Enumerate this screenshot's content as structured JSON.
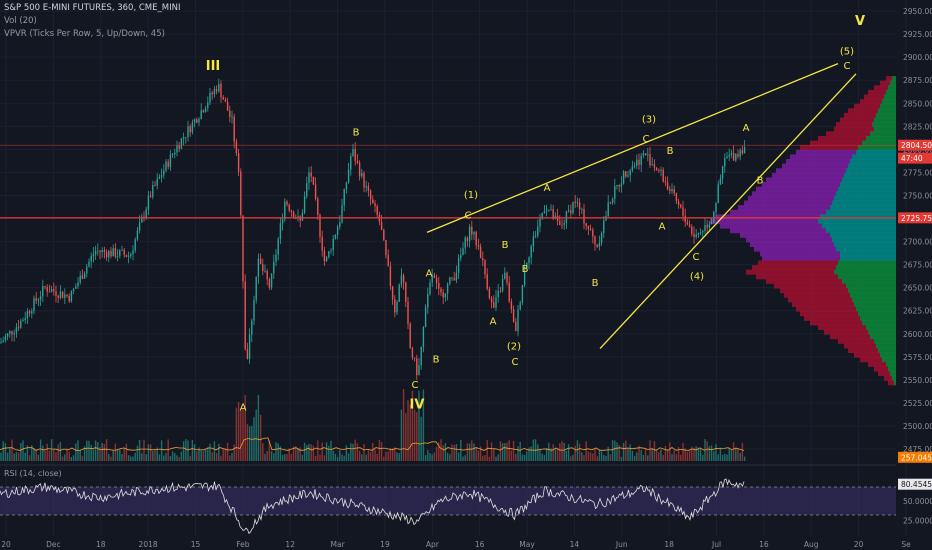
{
  "header": {
    "symbol_line": "S&P 500 E-MINI FUTURES, 360, CME_MINI",
    "vol_line": "Vol (20)",
    "vpvr_line": "VPVR (Ticks Per Row, 5, Up/Down, 45)",
    "rsi_line": "RSI (14, close)"
  },
  "colors": {
    "background": "#131722",
    "up": "#26a69a",
    "down": "#ef5350",
    "annotation": "#f5e642",
    "hline": "#e53935"
  },
  "chart_data": {
    "type": "candlestick",
    "title": "S&P 500 E-MINI FUTURES, 360, CME_MINI",
    "y_axis": {
      "ticks": [
        "2950.00",
        "2925.00",
        "2900.00",
        "2875.00",
        "2850.00",
        "2825.00",
        "2800.00",
        "2775.00",
        "2750.00",
        "2725.00",
        "2700.00",
        "2675.00",
        "2650.00",
        "2625.00",
        "2600.00",
        "2575.00",
        "2550.00",
        "2525.00",
        "2500.00",
        "2475.00"
      ],
      "range": [
        2462,
        2962
      ]
    },
    "x_axis": {
      "ticks": [
        "20",
        "Dec",
        "18",
        "2018",
        "15",
        "Feb",
        "12",
        "Mar",
        "19",
        "Apr",
        "16",
        "May",
        "14",
        "Jun",
        "18",
        "Jul",
        "16",
        "Aug",
        "20",
        "Se"
      ]
    },
    "price_anchors": [
      {
        "x": 0,
        "y": 2590
      },
      {
        "x": 20,
        "y": 2612
      },
      {
        "x": 45,
        "y": 2650
      },
      {
        "x": 70,
        "y": 2640
      },
      {
        "x": 95,
        "y": 2690
      },
      {
        "x": 130,
        "y": 2685
      },
      {
        "x": 150,
        "y": 2750
      },
      {
        "x": 175,
        "y": 2800
      },
      {
        "x": 200,
        "y": 2840
      },
      {
        "x": 218,
        "y": 2870
      },
      {
        "x": 232,
        "y": 2830
      },
      {
        "x": 240,
        "y": 2760
      },
      {
        "x": 246,
        "y": 2560
      },
      {
        "x": 258,
        "y": 2680
      },
      {
        "x": 270,
        "y": 2650
      },
      {
        "x": 285,
        "y": 2745
      },
      {
        "x": 300,
        "y": 2720
      },
      {
        "x": 310,
        "y": 2780
      },
      {
        "x": 325,
        "y": 2675
      },
      {
        "x": 340,
        "y": 2725
      },
      {
        "x": 352,
        "y": 2800
      },
      {
        "x": 365,
        "y": 2760
      },
      {
        "x": 380,
        "y": 2720
      },
      {
        "x": 395,
        "y": 2625
      },
      {
        "x": 402,
        "y": 2670
      },
      {
        "x": 410,
        "y": 2585
      },
      {
        "x": 418,
        "y": 2555
      },
      {
        "x": 425,
        "y": 2620
      },
      {
        "x": 432,
        "y": 2665
      },
      {
        "x": 440,
        "y": 2640
      },
      {
        "x": 455,
        "y": 2665
      },
      {
        "x": 470,
        "y": 2715
      },
      {
        "x": 480,
        "y": 2690
      },
      {
        "x": 493,
        "y": 2625
      },
      {
        "x": 505,
        "y": 2665
      },
      {
        "x": 515,
        "y": 2600
      },
      {
        "x": 525,
        "y": 2675
      },
      {
        "x": 545,
        "y": 2740
      },
      {
        "x": 560,
        "y": 2715
      },
      {
        "x": 575,
        "y": 2745
      },
      {
        "x": 597,
        "y": 2695
      },
      {
        "x": 610,
        "y": 2745
      },
      {
        "x": 625,
        "y": 2775
      },
      {
        "x": 645,
        "y": 2795
      },
      {
        "x": 660,
        "y": 2775
      },
      {
        "x": 675,
        "y": 2745
      },
      {
        "x": 695,
        "y": 2705
      },
      {
        "x": 712,
        "y": 2725
      },
      {
        "x": 725,
        "y": 2790
      },
      {
        "x": 737,
        "y": 2795
      },
      {
        "x": 745,
        "y": 2805
      }
    ],
    "horizontal_lines": [
      {
        "y": 2804.5
      },
      {
        "y": 2725.75
      }
    ],
    "trendlines": [
      {
        "from": {
          "x": 427,
          "y": 2710
        },
        "to": {
          "x": 838,
          "y": 2893
        }
      },
      {
        "from": {
          "x": 600,
          "y": 2584
        },
        "to": {
          "x": 856,
          "y": 2882
        }
      }
    ],
    "wave_labels": [
      {
        "text": "III",
        "x": 213,
        "y": 2886,
        "big": true
      },
      {
        "text": "A",
        "x": 243,
        "y": 2517
      },
      {
        "text": "B",
        "x": 356,
        "y": 2815
      },
      {
        "text": "A",
        "x": 429,
        "y": 2662
      },
      {
        "text": "C",
        "x": 415,
        "y": 2541
      },
      {
        "text": "B",
        "x": 436,
        "y": 2569
      },
      {
        "text": "IV",
        "x": 417,
        "y": 2519,
        "big": true
      },
      {
        "text": "(1)",
        "x": 471,
        "y": 2747
      },
      {
        "text": "C",
        "x": 468,
        "y": 2725
      },
      {
        "text": "B",
        "x": 505,
        "y": 2693
      },
      {
        "text": "A",
        "x": 493,
        "y": 2610
      },
      {
        "text": "B",
        "x": 525,
        "y": 2667
      },
      {
        "text": "(2)",
        "x": 514,
        "y": 2583
      },
      {
        "text": "C",
        "x": 515,
        "y": 2566
      },
      {
        "text": "A",
        "x": 547,
        "y": 2755
      },
      {
        "text": "B",
        "x": 595,
        "y": 2652
      },
      {
        "text": "(3)",
        "x": 649,
        "y": 2829
      },
      {
        "text": "C",
        "x": 646,
        "y": 2808
      },
      {
        "text": "B",
        "x": 670,
        "y": 2795
      },
      {
        "text": "A",
        "x": 662,
        "y": 2713
      },
      {
        "text": "C",
        "x": 696,
        "y": 2680
      },
      {
        "text": "(4)",
        "x": 697,
        "y": 2659
      },
      {
        "text": "B",
        "x": 760,
        "y": 2763
      },
      {
        "text": "A",
        "x": 746,
        "y": 2820
      },
      {
        "text": "(5)",
        "x": 847,
        "y": 2903
      },
      {
        "text": "C",
        "x": 847,
        "y": 2887
      },
      {
        "text": "V",
        "x": 860,
        "y": 2935,
        "big": true
      }
    ],
    "price_badges": [
      {
        "text": "2804.50",
        "y": 2804.5,
        "color": "#e53935"
      },
      {
        "text": "47:40",
        "y": 2790.5,
        "color": "#e53935"
      },
      {
        "text": "2725.75",
        "y": 2725.75,
        "color": "#e53935"
      },
      {
        "text": "257.045K",
        "y": 2466,
        "color": "#f57c00"
      }
    ],
    "rsi": {
      "ticks": [
        "80.4545",
        "50.0000",
        "25.0000"
      ],
      "upper": 70,
      "lower": 30,
      "anchors": [
        {
          "x": 0,
          "y": 60
        },
        {
          "x": 45,
          "y": 70
        },
        {
          "x": 100,
          "y": 55
        },
        {
          "x": 160,
          "y": 68
        },
        {
          "x": 218,
          "y": 72
        },
        {
          "x": 246,
          "y": 5
        },
        {
          "x": 270,
          "y": 45
        },
        {
          "x": 310,
          "y": 62
        },
        {
          "x": 340,
          "y": 50
        },
        {
          "x": 380,
          "y": 35
        },
        {
          "x": 418,
          "y": 20
        },
        {
          "x": 440,
          "y": 50
        },
        {
          "x": 470,
          "y": 62
        },
        {
          "x": 515,
          "y": 30
        },
        {
          "x": 545,
          "y": 65
        },
        {
          "x": 597,
          "y": 45
        },
        {
          "x": 645,
          "y": 68
        },
        {
          "x": 690,
          "y": 25
        },
        {
          "x": 725,
          "y": 78
        },
        {
          "x": 745,
          "y": 72
        }
      ]
    },
    "volume_profile": [
      {
        "y": 2877,
        "up": 4,
        "down": 6
      },
      {
        "y": 2872,
        "up": 6,
        "down": 10
      },
      {
        "y": 2867,
        "up": 8,
        "down": 14
      },
      {
        "y": 2862,
        "up": 10,
        "down": 18
      },
      {
        "y": 2857,
        "up": 12,
        "down": 20
      },
      {
        "y": 2852,
        "up": 14,
        "down": 22
      },
      {
        "y": 2847,
        "up": 16,
        "down": 26
      },
      {
        "y": 2842,
        "up": 18,
        "down": 30
      },
      {
        "y": 2837,
        "up": 20,
        "down": 32
      },
      {
        "y": 2832,
        "up": 22,
        "down": 34
      },
      {
        "y": 2827,
        "up": 24,
        "down": 36
      },
      {
        "y": 2822,
        "up": 22,
        "down": 40
      },
      {
        "y": 2817,
        "up": 26,
        "down": 44
      },
      {
        "y": 2812,
        "up": 30,
        "down": 48
      },
      {
        "y": 2807,
        "up": 34,
        "down": 52
      },
      {
        "y": 2802,
        "up": 38,
        "down": 58
      },
      {
        "y": 2797,
        "up": 40,
        "down": 60
      },
      {
        "y": 2792,
        "up": 44,
        "down": 62
      },
      {
        "y": 2787,
        "up": 46,
        "down": 64
      },
      {
        "y": 2782,
        "up": 48,
        "down": 66
      },
      {
        "y": 2777,
        "up": 50,
        "down": 70
      },
      {
        "y": 2772,
        "up": 52,
        "down": 72
      },
      {
        "y": 2767,
        "up": 54,
        "down": 76
      },
      {
        "y": 2762,
        "up": 56,
        "down": 78
      },
      {
        "y": 2757,
        "up": 58,
        "down": 82
      },
      {
        "y": 2752,
        "up": 60,
        "down": 84
      },
      {
        "y": 2747,
        "up": 62,
        "down": 86
      },
      {
        "y": 2742,
        "up": 64,
        "down": 88
      },
      {
        "y": 2737,
        "up": 66,
        "down": 92
      },
      {
        "y": 2732,
        "up": 70,
        "down": 96
      },
      {
        "y": 2727,
        "up": 76,
        "down": 104
      },
      {
        "y": 2722,
        "up": 78,
        "down": 108
      },
      {
        "y": 2717,
        "up": 74,
        "down": 102
      },
      {
        "y": 2712,
        "up": 70,
        "down": 96
      },
      {
        "y": 2707,
        "up": 66,
        "down": 90
      },
      {
        "y": 2702,
        "up": 64,
        "down": 86
      },
      {
        "y": 2697,
        "up": 62,
        "down": 84
      },
      {
        "y": 2692,
        "up": 60,
        "down": 82
      },
      {
        "y": 2687,
        "up": 56,
        "down": 80
      },
      {
        "y": 2682,
        "up": 56,
        "down": 78
      },
      {
        "y": 2677,
        "up": 58,
        "down": 80
      },
      {
        "y": 2672,
        "up": 60,
        "down": 84
      },
      {
        "y": 2667,
        "up": 62,
        "down": 88
      },
      {
        "y": 2662,
        "up": 58,
        "down": 82
      },
      {
        "y": 2657,
        "up": 54,
        "down": 76
      },
      {
        "y": 2652,
        "up": 50,
        "down": 72
      },
      {
        "y": 2647,
        "up": 48,
        "down": 68
      },
      {
        "y": 2642,
        "up": 46,
        "down": 66
      },
      {
        "y": 2637,
        "up": 44,
        "down": 64
      },
      {
        "y": 2632,
        "up": 42,
        "down": 62
      },
      {
        "y": 2627,
        "up": 40,
        "down": 60
      },
      {
        "y": 2622,
        "up": 38,
        "down": 58
      },
      {
        "y": 2617,
        "up": 36,
        "down": 56
      },
      {
        "y": 2612,
        "up": 34,
        "down": 52
      },
      {
        "y": 2607,
        "up": 30,
        "down": 48
      },
      {
        "y": 2602,
        "up": 28,
        "down": 44
      },
      {
        "y": 2597,
        "up": 26,
        "down": 40
      },
      {
        "y": 2592,
        "up": 22,
        "down": 36
      },
      {
        "y": 2587,
        "up": 20,
        "down": 32
      },
      {
        "y": 2582,
        "up": 18,
        "down": 30
      },
      {
        "y": 2577,
        "up": 16,
        "down": 26
      },
      {
        "y": 2572,
        "up": 14,
        "down": 22
      },
      {
        "y": 2567,
        "up": 10,
        "down": 18
      },
      {
        "y": 2562,
        "up": 8,
        "down": 14
      },
      {
        "y": 2557,
        "up": 6,
        "down": 12
      },
      {
        "y": 2552,
        "up": 4,
        "down": 8
      },
      {
        "y": 2547,
        "up": 2,
        "down": 6
      }
    ]
  }
}
